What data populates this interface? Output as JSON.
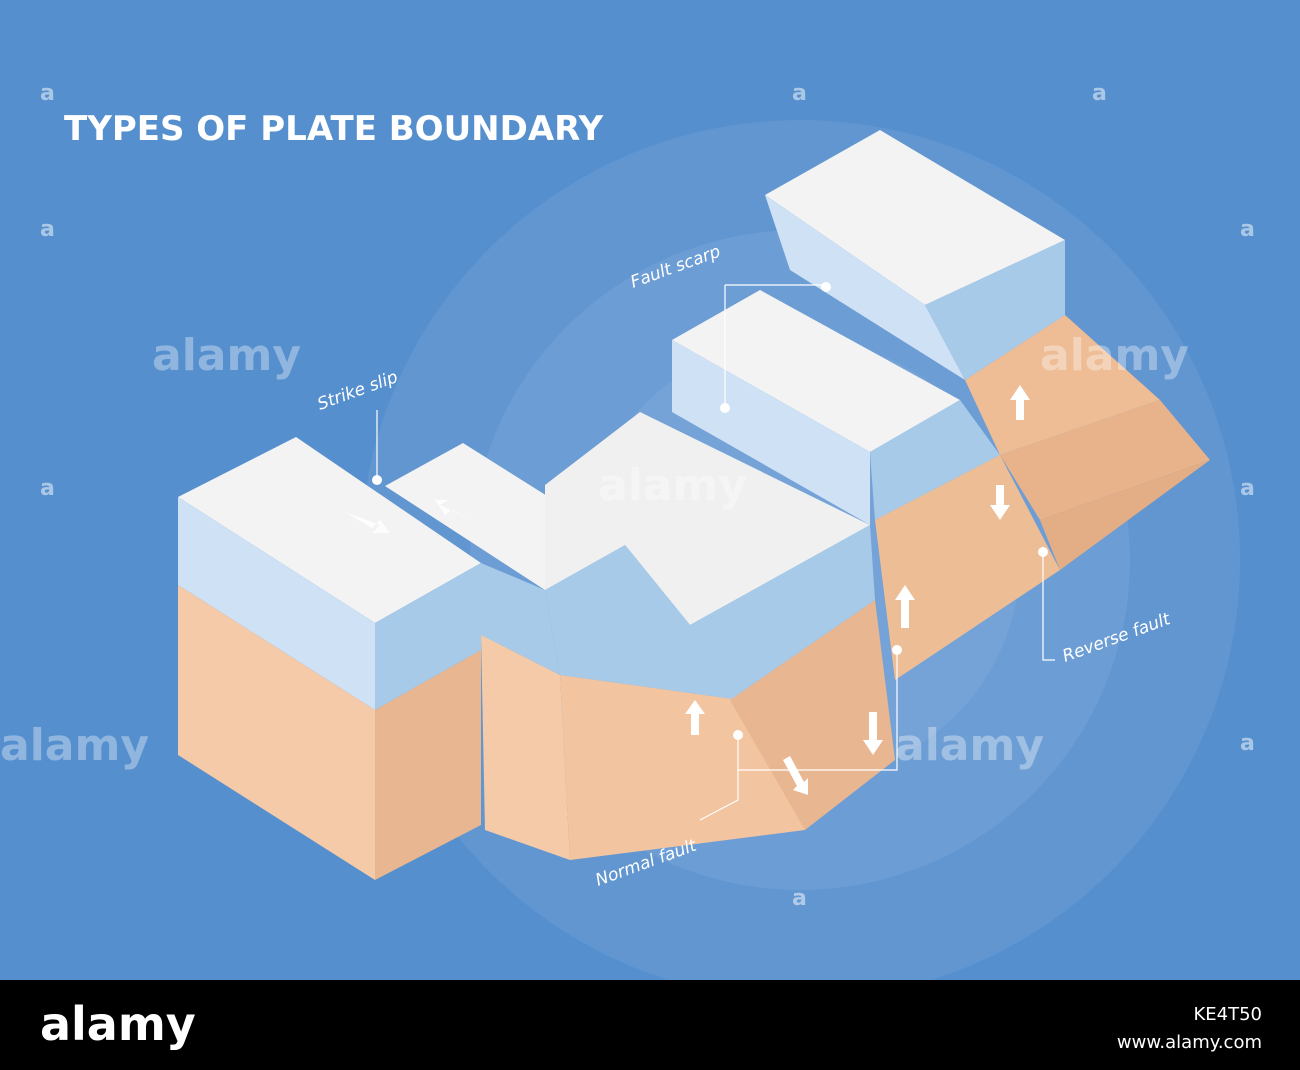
{
  "header": {
    "title": "TYPES OF PLATE BOUNDARY"
  },
  "labels": {
    "strike_slip": "Strike slip",
    "fault_scarp": "Fault scarp",
    "reverse_fault": "Reverse fault",
    "normal_fault": "Normal fault"
  },
  "watermark": {
    "word": "alamy",
    "letter": "a"
  },
  "footer": {
    "logo": "alamy",
    "image_id": "KE4T50",
    "url": "www.alamy.com"
  }
}
